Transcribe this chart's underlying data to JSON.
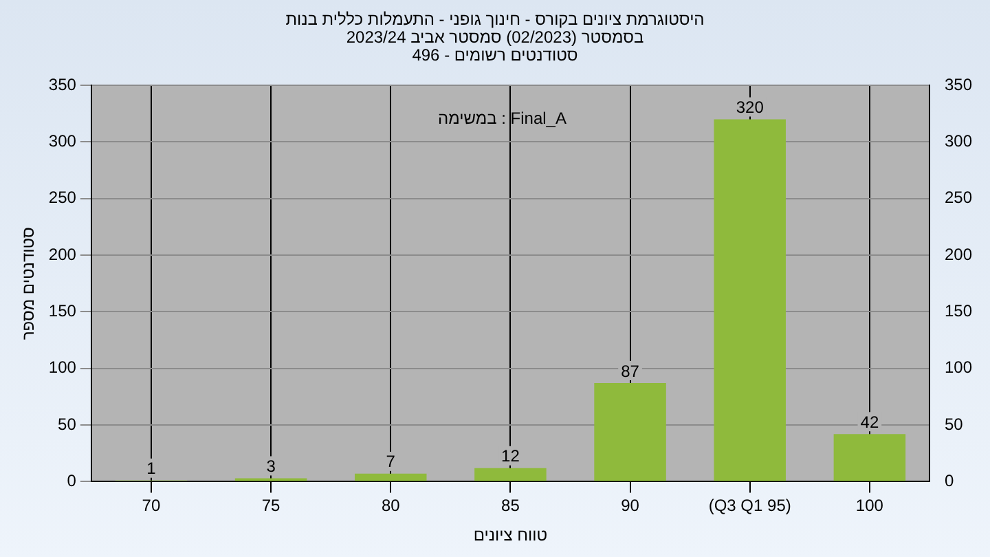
{
  "chart_data": {
    "type": "bar",
    "title": "היסטוגרמת ציונים בקורס - חינוך גופני - התעמלות כללית בנות",
    "subtitle": "בסמסטר (02/2023) סמסטר אביב 2023/24\nסטודנטים רשומים - 496",
    "xlabel": "טווח ציונים",
    "ylabel": "סטודנטים מספר",
    "annotations": [
      "במשימה : Final_A"
    ],
    "categories": [
      "70",
      "75",
      "80",
      "85",
      "90",
      "(Q3 Q1 95)",
      "100"
    ],
    "values": [
      1,
      3,
      7,
      12,
      87,
      320,
      42
    ],
    "color": "#8fba3c",
    "ylim": [
      0,
      350
    ],
    "yticks": [
      0,
      50,
      100,
      150,
      200,
      250,
      300,
      350
    ],
    "y2lim": [
      0,
      350
    ],
    "y2ticks": [
      0,
      50,
      100,
      150,
      200,
      250,
      300,
      350
    ],
    "grid": true,
    "data_labels": true
  }
}
